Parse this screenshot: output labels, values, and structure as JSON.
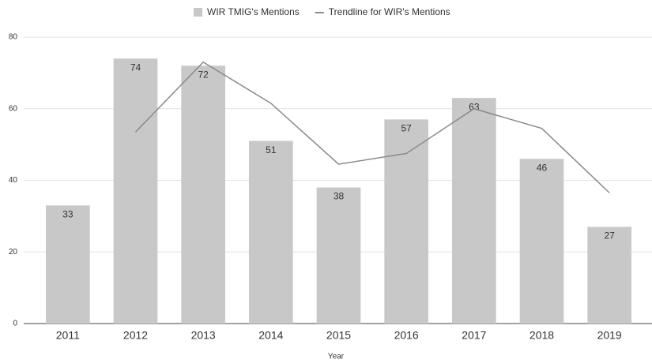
{
  "chart_data": {
    "type": "bar_line",
    "x_label": "Year",
    "categories": [
      "2011",
      "2012",
      "2013",
      "2014",
      "2015",
      "2016",
      "2017",
      "2018",
      "2019"
    ],
    "series": [
      {
        "name": "WIR TMIG's Mentions",
        "color": "#c8c8c8",
        "type": "bar",
        "values": [
          33,
          74,
          72,
          51,
          38,
          57,
          63,
          46,
          27
        ]
      },
      {
        "name": "Trendline for WIR's Mentions",
        "color": "#8a8a8a",
        "type": "line",
        "values": [
          null,
          53.5,
          73,
          61.5,
          44.5,
          47.5,
          60,
          54.5,
          36.5
        ]
      }
    ],
    "ylim": [
      0,
      80
    ],
    "yticks": [
      0,
      20,
      40,
      60,
      80
    ],
    "grid": true
  }
}
